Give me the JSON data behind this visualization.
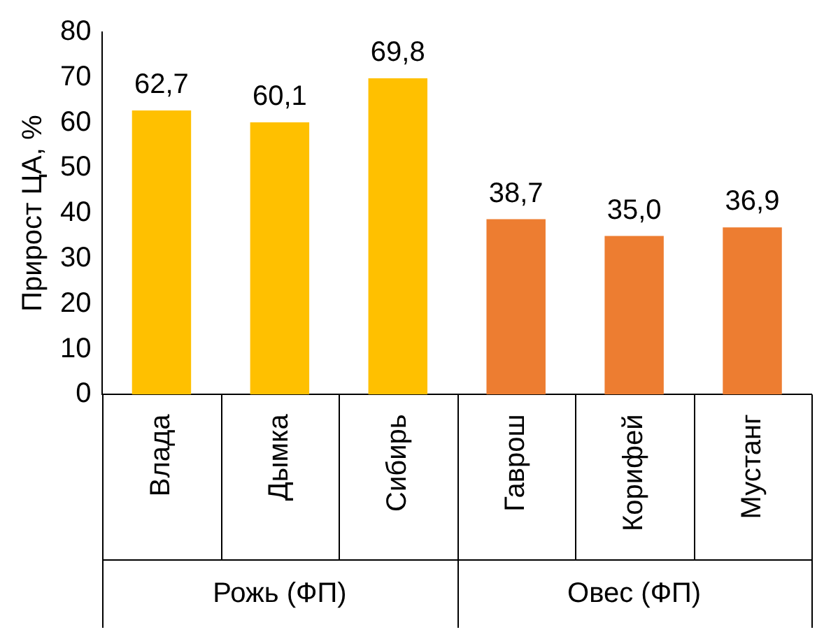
{
  "chart_data": {
    "type": "bar",
    "ylabel": "Прирост ЦА, %",
    "categories": [
      "Влада",
      "Дымка",
      "Сибирь",
      "Гаврош",
      "Корифей",
      "Мустанг"
    ],
    "values": [
      62.7,
      60.1,
      69.8,
      38.7,
      35.0,
      36.9
    ],
    "colors": [
      "#ffc000",
      "#ffc000",
      "#ffc000",
      "#ed7d31",
      "#ed7d31",
      "#ed7d31"
    ],
    "value_labels": [
      "62,7",
      "60,1",
      "69,8",
      "38,7",
      "35,0",
      "36,9"
    ],
    "annotations": [
      "Рожь (ФП)",
      "Овес (ФП)"
    ],
    "ylim": [
      0,
      80
    ],
    "yticks": [
      0,
      10,
      20,
      30,
      40,
      50,
      60,
      70,
      80
    ],
    "grid": false,
    "legend": false
  }
}
